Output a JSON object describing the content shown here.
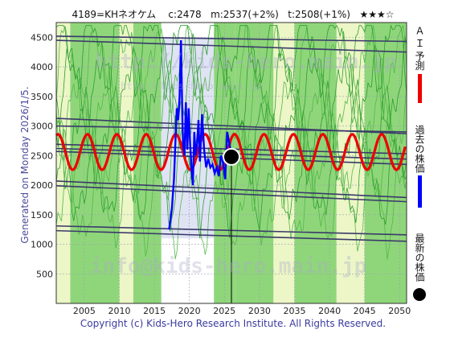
{
  "header": {
    "stock": "4189=KHネオケム",
    "close": "c:2478",
    "m": "m:2537(+2%)",
    "t": "t:2508(+1%)",
    "rating": "★★★☆"
  },
  "generated": "Generated on Monday 2026/1/5.",
  "footer": "Copyright (c) Kids-Hero Research Institute. All Rights Reserved.",
  "watermarks": {
    "url": "http://kids-hero.main.jp",
    "url_small": "http://kids-hero.main.jp/",
    "email": "info@kids-hero.main.jp"
  },
  "colors": {
    "ai_forecast": "#ee0000",
    "past_price": "#0000ff",
    "latest_point": "#000000",
    "band_green": "#8fd67a",
    "band_light": "#ecf6c6",
    "band_white": "#ffffff",
    "trend_lines": "#3a3a6a"
  },
  "chart_data": {
    "type": "line",
    "xlim": [
      2001,
      2051
    ],
    "ylim": [
      0,
      4750
    ],
    "xticks": [
      2005,
      2010,
      2015,
      2020,
      2025,
      2030,
      2035,
      2040,
      2045,
      2050
    ],
    "yticks": [
      500,
      1000,
      1500,
      2000,
      2500,
      3000,
      3500,
      4000,
      4500
    ],
    "grid": true,
    "legend": [
      "Ａ Ｉ 予測",
      "過去の株価",
      "最新の株価"
    ],
    "latest": {
      "x": 2026.0,
      "y": 2478
    },
    "past_price": {
      "name": "過去の株価",
      "x": [
        2017.1,
        2017.5,
        2017.8,
        2018.0,
        2018.2,
        2018.4,
        2018.6,
        2018.8,
        2019.0,
        2019.1,
        2019.3,
        2019.5,
        2019.7,
        2019.9,
        2020.1,
        2020.3,
        2020.5,
        2020.7,
        2020.9,
        2021.1,
        2021.3,
        2021.5,
        2021.8,
        2022.1,
        2022.4,
        2022.7,
        2023.0,
        2023.3,
        2023.6,
        2023.9,
        2024.2,
        2024.5,
        2024.8,
        2025.1,
        2025.4,
        2025.7,
        2026.0
      ],
      "y": [
        1250,
        1600,
        2100,
        2700,
        3300,
        3100,
        3500,
        4450,
        3100,
        2700,
        2500,
        3400,
        2600,
        3300,
        2700,
        2300,
        2000,
        2900,
        2500,
        2700,
        3100,
        2400,
        3200,
        2600,
        2300,
        2450,
        2300,
        2350,
        2200,
        2300,
        2150,
        2500,
        2400,
        2100,
        2900,
        2700,
        2478
      ]
    },
    "ai_forecast": {
      "name": "Ａ Ｉ 予測",
      "mean": 2560,
      "amplitude": 300,
      "period_years": 4.2,
      "phase": 2001.0,
      "x_start": 2001,
      "x_end": 2050.8,
      "mid_band": [
        {
          "x": 2017.0,
          "y": 2700
        },
        {
          "x": 2021.0,
          "y": 2350
        },
        {
          "x": 2026.0,
          "y": 2500
        }
      ]
    },
    "trend_lines": [
      {
        "x": [
          2001,
          2051
        ],
        "y": [
          4520,
          4430
        ]
      },
      {
        "x": [
          2001,
          2051
        ],
        "y": [
          4450,
          4250
        ]
      },
      {
        "x": [
          2001,
          2051
        ],
        "y": [
          3130,
          2870
        ]
      },
      {
        "x": [
          2001,
          2051
        ],
        "y": [
          3000,
          2900
        ]
      },
      {
        "x": [
          2001,
          2051
        ],
        "y": [
          2690,
          2530
        ]
      },
      {
        "x": [
          2001,
          2051
        ],
        "y": [
          2620,
          2440
        ]
      },
      {
        "x": [
          2001,
          2051
        ],
        "y": [
          2570,
          2350
        ]
      },
      {
        "x": [
          2001,
          2051
        ],
        "y": [
          2070,
          1790
        ]
      },
      {
        "x": [
          2001,
          2051
        ],
        "y": [
          1990,
          1720
        ]
      },
      {
        "x": [
          2001,
          2051
        ],
        "y": [
          1310,
          1160
        ]
      },
      {
        "x": [
          2001,
          2051
        ],
        "y": [
          1230,
          1050
        ]
      }
    ],
    "bands": [
      {
        "x0": 2001,
        "x1": 2003,
        "kind": "band_light"
      },
      {
        "x0": 2003,
        "x1": 2010,
        "kind": "band_green"
      },
      {
        "x0": 2010,
        "x1": 2012,
        "kind": "band_light"
      },
      {
        "x0": 2012,
        "x1": 2016,
        "kind": "band_green"
      },
      {
        "x0": 2016,
        "x1": 2023.5,
        "kind": "band_white"
      },
      {
        "x0": 2023.5,
        "x1": 2026.5,
        "kind": "band_green"
      },
      {
        "x0": 2026.5,
        "x1": 2032,
        "kind": "band_green"
      },
      {
        "x0": 2032,
        "x1": 2035,
        "kind": "band_light"
      },
      {
        "x0": 2035,
        "x1": 2041,
        "kind": "band_green"
      },
      {
        "x0": 2041,
        "x1": 2045,
        "kind": "band_light"
      },
      {
        "x0": 2045,
        "x1": 2051,
        "kind": "band_green"
      }
    ]
  }
}
